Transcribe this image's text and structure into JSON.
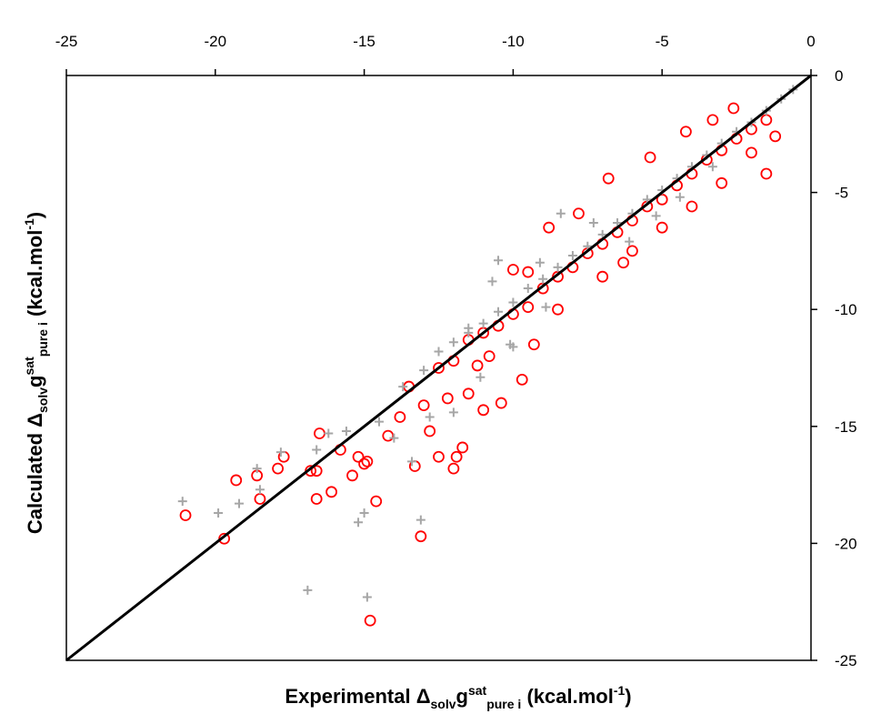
{
  "chart_data": {
    "type": "scatter",
    "x_axis": {
      "position": "top",
      "range": [
        -25,
        0
      ],
      "ticks": [
        "-25",
        "-20",
        "-15",
        "-10",
        "-5",
        "0"
      ],
      "tick_values": [
        -25,
        -20,
        -15,
        -10,
        -5,
        0
      ],
      "title": {
        "prefix": "Experimental ",
        "delta": "Δ",
        "delta_sub": "solv",
        "g": "g",
        "g_sup": "sat",
        "g_sub": "pure i",
        "unit_open": " (kcal.mol",
        "unit_sup": "-1",
        "unit_close": ")"
      }
    },
    "y_axis": {
      "position": "right",
      "range": [
        -25,
        0
      ],
      "ticks": [
        "0",
        "-5",
        "-10",
        "-15",
        "-20",
        "-25"
      ],
      "tick_values": [
        0,
        -5,
        -10,
        -15,
        -20,
        -25
      ],
      "title": {
        "prefix": "Calculated ",
        "delta": "Δ",
        "delta_sub": "solv",
        "g": "g",
        "g_sup": "sat",
        "g_sub": "pure i",
        "unit_open": " (kcal.mol",
        "unit_sup": "-1",
        "unit_close": ")"
      }
    },
    "grid": false,
    "legend": "none",
    "reference_line": {
      "from": [
        -25,
        -25
      ],
      "to": [
        0,
        0
      ],
      "color": "#000000"
    },
    "series": [
      {
        "marker": "circle-open",
        "color": "#ff0000",
        "points": [
          [
            -21.0,
            -18.8
          ],
          [
            -19.7,
            -19.8
          ],
          [
            -19.3,
            -17.3
          ],
          [
            -18.6,
            -17.1
          ],
          [
            -18.5,
            -18.1
          ],
          [
            -17.9,
            -16.8
          ],
          [
            -17.7,
            -16.3
          ],
          [
            -16.8,
            -16.9
          ],
          [
            -16.6,
            -18.1
          ],
          [
            -16.6,
            -16.9
          ],
          [
            -16.5,
            -15.3
          ],
          [
            -16.1,
            -17.8
          ],
          [
            -15.8,
            -16.0
          ],
          [
            -15.4,
            -17.1
          ],
          [
            -15.2,
            -16.3
          ],
          [
            -15.0,
            -16.6
          ],
          [
            -14.9,
            -16.5
          ],
          [
            -14.6,
            -18.2
          ],
          [
            -14.8,
            -23.3
          ],
          [
            -13.3,
            -16.7
          ],
          [
            -13.1,
            -19.7
          ],
          [
            -12.5,
            -16.3
          ],
          [
            -12.0,
            -16.8
          ],
          [
            -11.9,
            -16.3
          ],
          [
            -12.8,
            -15.2
          ],
          [
            -11.7,
            -15.9
          ],
          [
            -11.0,
            -14.3
          ],
          [
            -11.5,
            -13.6
          ],
          [
            -10.4,
            -14.0
          ],
          [
            -9.7,
            -13.0
          ],
          [
            -14.2,
            -15.4
          ],
          [
            -13.8,
            -14.6
          ],
          [
            -13.0,
            -14.1
          ],
          [
            -12.5,
            -12.5
          ],
          [
            -12.0,
            -12.2
          ],
          [
            -11.5,
            -11.3
          ],
          [
            -11.0,
            -11.0
          ],
          [
            -10.5,
            -10.7
          ],
          [
            -10.0,
            -10.2
          ],
          [
            -9.5,
            -9.9
          ],
          [
            -9.5,
            -8.4
          ],
          [
            -9.0,
            -9.1
          ],
          [
            -8.5,
            -8.6
          ],
          [
            -8.5,
            -10.0
          ],
          [
            -8.0,
            -8.2
          ],
          [
            -7.5,
            -7.6
          ],
          [
            -7.0,
            -7.2
          ],
          [
            -7.0,
            -8.6
          ],
          [
            -6.5,
            -6.7
          ],
          [
            -6.0,
            -6.2
          ],
          [
            -6.0,
            -7.5
          ],
          [
            -5.5,
            -5.6
          ],
          [
            -5.0,
            -5.3
          ],
          [
            -5.0,
            -6.5
          ],
          [
            -4.5,
            -4.7
          ],
          [
            -4.0,
            -4.2
          ],
          [
            -4.0,
            -5.6
          ],
          [
            -3.5,
            -3.6
          ],
          [
            -3.0,
            -3.2
          ],
          [
            -3.0,
            -4.6
          ],
          [
            -2.5,
            -2.7
          ],
          [
            -2.0,
            -2.3
          ],
          [
            -2.0,
            -3.3
          ],
          [
            -1.5,
            -1.9
          ],
          [
            -1.5,
            -4.2
          ],
          [
            -1.2,
            -2.6
          ],
          [
            -6.8,
            -4.4
          ],
          [
            -5.4,
            -3.5
          ],
          [
            -7.8,
            -5.9
          ],
          [
            -8.8,
            -6.5
          ],
          [
            -10.0,
            -8.3
          ],
          [
            -11.2,
            -12.4
          ],
          [
            -12.2,
            -13.8
          ],
          [
            -13.5,
            -13.3
          ],
          [
            -9.3,
            -11.5
          ],
          [
            -4.2,
            -2.4
          ],
          [
            -3.3,
            -1.9
          ],
          [
            -2.6,
            -1.4
          ],
          [
            -10.8,
            -12.0
          ],
          [
            -6.3,
            -8.0
          ]
        ]
      },
      {
        "marker": "plus",
        "color": "#a6a6a6",
        "points": [
          [
            -21.1,
            -18.2
          ],
          [
            -19.9,
            -18.7
          ],
          [
            -19.2,
            -18.3
          ],
          [
            -18.5,
            -17.7
          ],
          [
            -18.6,
            -16.8
          ],
          [
            -17.8,
            -16.1
          ],
          [
            -16.9,
            -22.0
          ],
          [
            -16.6,
            -16.0
          ],
          [
            -16.2,
            -15.3
          ],
          [
            -15.2,
            -19.1
          ],
          [
            -15.0,
            -18.7
          ],
          [
            -14.9,
            -22.3
          ],
          [
            -13.1,
            -19.0
          ],
          [
            -13.4,
            -16.5
          ],
          [
            -12.0,
            -14.4
          ],
          [
            -11.1,
            -12.9
          ],
          [
            -10.5,
            -7.9
          ],
          [
            -10.7,
            -8.8
          ],
          [
            -11.5,
            -10.8
          ],
          [
            -10.0,
            -11.6
          ],
          [
            -14.5,
            -14.8
          ],
          [
            -13.7,
            -13.3
          ],
          [
            -13.0,
            -12.6
          ],
          [
            -12.5,
            -11.8
          ],
          [
            -12.0,
            -11.4
          ],
          [
            -11.5,
            -11.0
          ],
          [
            -11.0,
            -10.6
          ],
          [
            -10.5,
            -10.1
          ],
          [
            -10.0,
            -9.7
          ],
          [
            -9.5,
            -9.1
          ],
          [
            -9.0,
            -8.7
          ],
          [
            -8.5,
            -8.2
          ],
          [
            -8.0,
            -7.7
          ],
          [
            -7.5,
            -7.3
          ],
          [
            -7.0,
            -6.8
          ],
          [
            -6.5,
            -6.3
          ],
          [
            -6.0,
            -5.9
          ],
          [
            -5.5,
            -5.3
          ],
          [
            -5.0,
            -4.9
          ],
          [
            -4.5,
            -4.4
          ],
          [
            -4.0,
            -3.9
          ],
          [
            -3.5,
            -3.4
          ],
          [
            -3.0,
            -2.9
          ],
          [
            -2.5,
            -2.4
          ],
          [
            -2.0,
            -2.0
          ],
          [
            -1.5,
            -1.5
          ],
          [
            -1.0,
            -1.0
          ],
          [
            -0.6,
            -0.6
          ],
          [
            -8.4,
            -5.9
          ],
          [
            -9.1,
            -8.0
          ],
          [
            -7.3,
            -6.3
          ],
          [
            -6.1,
            -7.1
          ],
          [
            -5.2,
            -6.0
          ],
          [
            -4.4,
            -5.2
          ],
          [
            -3.3,
            -3.9
          ],
          [
            -8.9,
            -9.9
          ],
          [
            -10.1,
            -11.5
          ],
          [
            -12.8,
            -14.6
          ],
          [
            -14.0,
            -15.5
          ],
          [
            -15.6,
            -15.2
          ]
        ]
      }
    ]
  }
}
